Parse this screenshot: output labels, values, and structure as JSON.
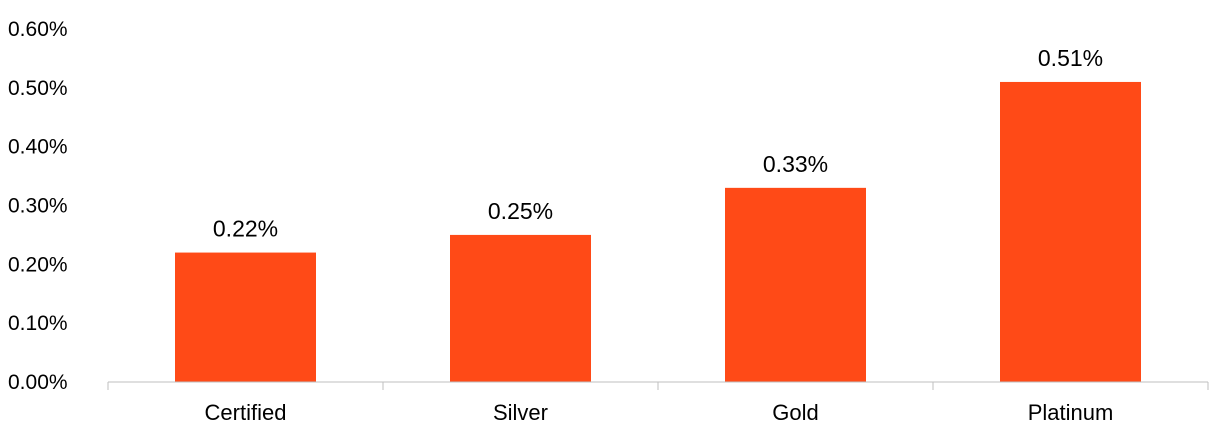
{
  "chart_data": {
    "type": "bar",
    "categories": [
      "Certified",
      "Silver",
      "Gold",
      "Platinum"
    ],
    "values": [
      0.22,
      0.25,
      0.33,
      0.51
    ],
    "data_labels": [
      "0.22%",
      "0.25%",
      "0.33%",
      "0.51%"
    ],
    "y_ticks": [
      0,
      0.1,
      0.2,
      0.3,
      0.4,
      0.5,
      0.6
    ],
    "y_tick_labels": [
      "0.00%",
      "0.10%",
      "0.20%",
      "0.30%",
      "0.40%",
      "0.50%",
      "0.60%"
    ],
    "ylim": [
      0,
      0.6
    ],
    "title": "",
    "xlabel": "",
    "ylabel": "",
    "grid": false,
    "legend": "none",
    "bar_color": "#ff4a17"
  }
}
